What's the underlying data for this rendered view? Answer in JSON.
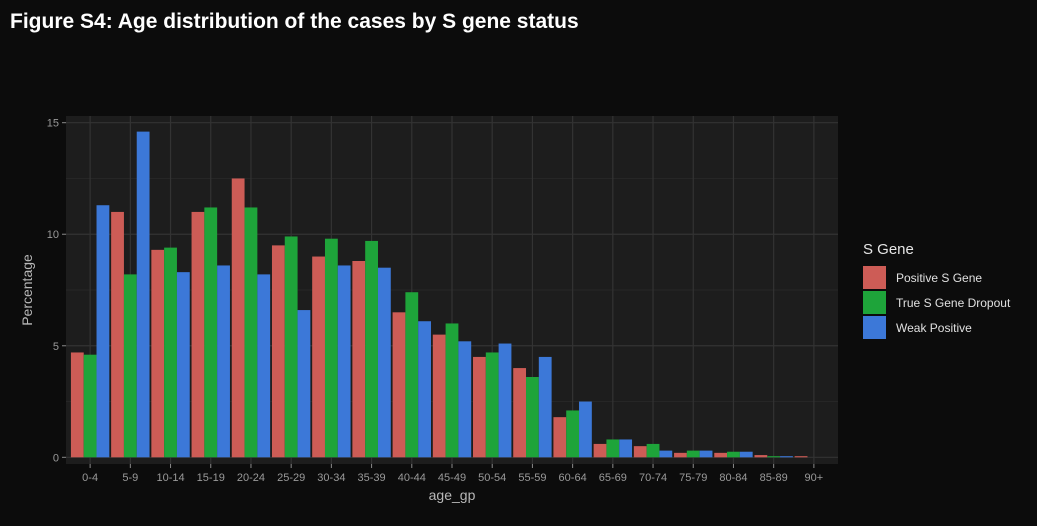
{
  "figure_title": "Figure S4: Age distribution of the cases by S gene status",
  "chart_data": {
    "type": "bar",
    "title": "",
    "xlabel": "age_gp",
    "ylabel": "Percentage",
    "ylim": [
      -0.3,
      15.3
    ],
    "yticks": [
      0,
      5,
      10,
      15
    ],
    "grid": true,
    "legend": {
      "title": "S Gene",
      "position": "right"
    },
    "categories": [
      "0-4",
      "5-9",
      "10-14",
      "15-19",
      "20-24",
      "25-29",
      "30-34",
      "35-39",
      "40-44",
      "45-49",
      "50-54",
      "55-59",
      "60-64",
      "65-69",
      "70-74",
      "75-79",
      "80-84",
      "85-89",
      "90+"
    ],
    "series": [
      {
        "name": "Positive S Gene",
        "color": "#cd5c56",
        "values": [
          4.7,
          11.0,
          9.3,
          11.0,
          12.5,
          9.5,
          9.0,
          8.8,
          6.5,
          5.5,
          4.5,
          4.0,
          1.8,
          0.6,
          0.5,
          0.2,
          0.2,
          0.1,
          0.05
        ]
      },
      {
        "name": "True S Gene Dropout",
        "color": "#1ea43a",
        "values": [
          4.6,
          8.2,
          9.4,
          11.2,
          11.2,
          9.9,
          9.8,
          9.7,
          7.4,
          6.0,
          4.7,
          3.6,
          2.1,
          0.8,
          0.6,
          0.3,
          0.25,
          0.05,
          0.0
        ]
      },
      {
        "name": "Weak Positive",
        "color": "#3c78d8",
        "values": [
          11.3,
          14.6,
          8.3,
          8.6,
          8.2,
          6.6,
          8.6,
          8.5,
          6.1,
          5.2,
          5.1,
          4.5,
          2.5,
          0.8,
          0.3,
          0.3,
          0.25,
          0.05,
          0.0
        ]
      }
    ]
  }
}
